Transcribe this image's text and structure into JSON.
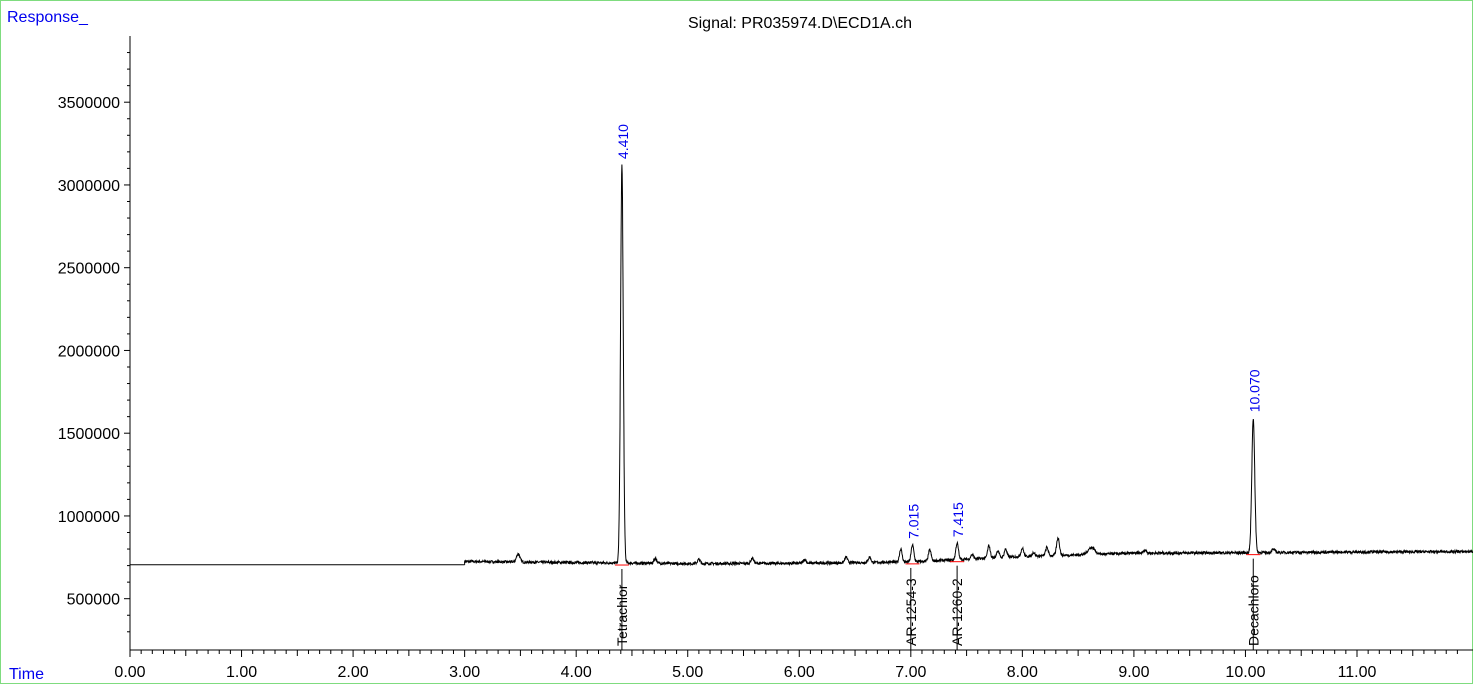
{
  "chart_data": {
    "type": "line",
    "title": "Signal: PR035974.D\\ECD1A.ch",
    "ylabel": "Response_",
    "xlabel": "Time",
    "xlim": [
      0,
      12.04
    ],
    "ylim": [
      190000,
      3900000
    ],
    "x_ticks": [
      "0.00",
      "1.00",
      "2.00",
      "3.00",
      "4.00",
      "5.00",
      "6.00",
      "7.00",
      "8.00",
      "9.00",
      "10.00",
      "11.00"
    ],
    "y_ticks": [
      "500000",
      "1000000",
      "1500000",
      "2000000",
      "2500000",
      "3000000",
      "3500000"
    ],
    "grid": false,
    "baseline": {
      "flat_level": 705000,
      "flat_end": 3.0,
      "points": [
        [
          3.0,
          725000
        ],
        [
          4.0,
          718000
        ],
        [
          5.0,
          712000
        ],
        [
          6.0,
          714000
        ],
        [
          7.0,
          722000
        ],
        [
          8.0,
          755000
        ],
        [
          9.0,
          775000
        ],
        [
          10.0,
          778000
        ],
        [
          11.0,
          782000
        ],
        [
          12.04,
          785000
        ]
      ]
    },
    "peaks": [
      {
        "rt": 3.48,
        "height": 772000,
        "width": 0.015,
        "label": ""
      },
      {
        "rt": 4.41,
        "height": 3120000,
        "width": 0.012,
        "label": "4.410"
      },
      {
        "rt": 4.71,
        "height": 745000,
        "width": 0.012,
        "label": ""
      },
      {
        "rt": 5.1,
        "height": 738000,
        "width": 0.012,
        "label": ""
      },
      {
        "rt": 5.58,
        "height": 745000,
        "width": 0.012,
        "label": ""
      },
      {
        "rt": 6.05,
        "height": 738000,
        "width": 0.012,
        "label": ""
      },
      {
        "rt": 6.42,
        "height": 752000,
        "width": 0.012,
        "label": ""
      },
      {
        "rt": 6.63,
        "height": 752000,
        "width": 0.012,
        "label": ""
      },
      {
        "rt": 6.91,
        "height": 800000,
        "width": 0.012,
        "label": ""
      },
      {
        "rt": 7.015,
        "height": 825000,
        "width": 0.012,
        "label": "7.015"
      },
      {
        "rt": 7.17,
        "height": 795000,
        "width": 0.012,
        "label": ""
      },
      {
        "rt": 7.415,
        "height": 835000,
        "width": 0.012,
        "label": "7.415"
      },
      {
        "rt": 7.55,
        "height": 768000,
        "width": 0.012,
        "label": ""
      },
      {
        "rt": 7.7,
        "height": 820000,
        "width": 0.012,
        "label": ""
      },
      {
        "rt": 7.78,
        "height": 790000,
        "width": 0.012,
        "label": ""
      },
      {
        "rt": 7.85,
        "height": 800000,
        "width": 0.012,
        "label": ""
      },
      {
        "rt": 8.0,
        "height": 805000,
        "width": 0.012,
        "label": ""
      },
      {
        "rt": 8.1,
        "height": 780000,
        "width": 0.012,
        "label": ""
      },
      {
        "rt": 8.22,
        "height": 810000,
        "width": 0.012,
        "label": ""
      },
      {
        "rt": 8.32,
        "height": 868000,
        "width": 0.013,
        "label": ""
      },
      {
        "rt": 8.62,
        "height": 810000,
        "width": 0.03,
        "label": ""
      },
      {
        "rt": 9.1,
        "height": 792000,
        "width": 0.015,
        "label": ""
      },
      {
        "rt": 10.07,
        "height": 1590000,
        "width": 0.013,
        "label": "10.070"
      },
      {
        "rt": 10.25,
        "height": 798000,
        "width": 0.015,
        "label": ""
      }
    ],
    "compounds": [
      {
        "rt": 4.41,
        "name": "Tetrachlor"
      },
      {
        "rt": 7.0,
        "name": "AR-1254-3"
      },
      {
        "rt": 7.415,
        "name": "AR-1260-2"
      },
      {
        "rt": 10.07,
        "name": "Decachloro"
      }
    ],
    "colors": {
      "trace": "#000000",
      "peak_label": "#0000ee",
      "axis_label": "#0000ee",
      "frame": "#7fdc7f",
      "integration": "#ff0000"
    }
  }
}
